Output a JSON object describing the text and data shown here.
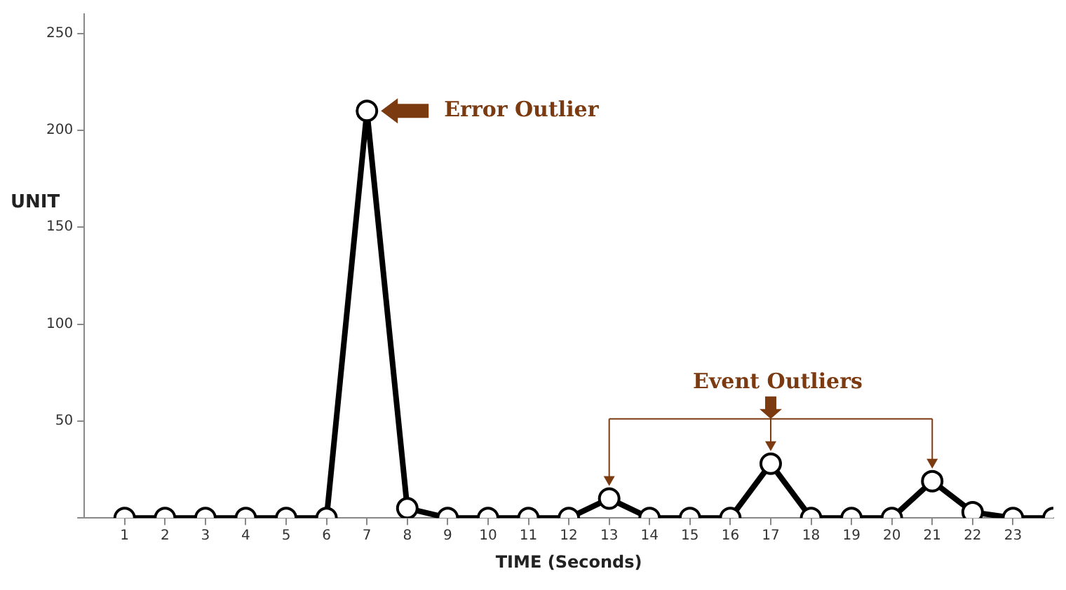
{
  "chart_data": {
    "type": "line",
    "xlabel": "TIME (Seconds)",
    "ylabel": "UNIT",
    "x": [
      1,
      2,
      3,
      4,
      5,
      6,
      7,
      8,
      9,
      10,
      11,
      12,
      13,
      14,
      15,
      16,
      17,
      18,
      19,
      20,
      21,
      22,
      23,
      24
    ],
    "series": [
      {
        "color": "#000000",
        "values": [
          0,
          0,
          0,
          0,
          0,
          0,
          210,
          5,
          0,
          0,
          0,
          0,
          10,
          0,
          0,
          0,
          28,
          0,
          0,
          0,
          19,
          3,
          0,
          0
        ]
      }
    ],
    "xlim": [
      0,
      24
    ],
    "xticks": [
      1,
      2,
      3,
      4,
      5,
      6,
      7,
      8,
      9,
      10,
      11,
      12,
      13,
      14,
      15,
      16,
      17,
      18,
      19,
      20,
      21,
      22,
      23
    ],
    "ylim": [
      0,
      260
    ],
    "yticks": [
      {
        "value": 0,
        "label": null
      },
      50,
      100,
      150,
      200,
      250
    ],
    "grid": false,
    "legend": false,
    "marker": "circle",
    "line_style": "solid",
    "annotations": [
      "Error Outlier",
      "Event Outliers"
    ]
  }
}
